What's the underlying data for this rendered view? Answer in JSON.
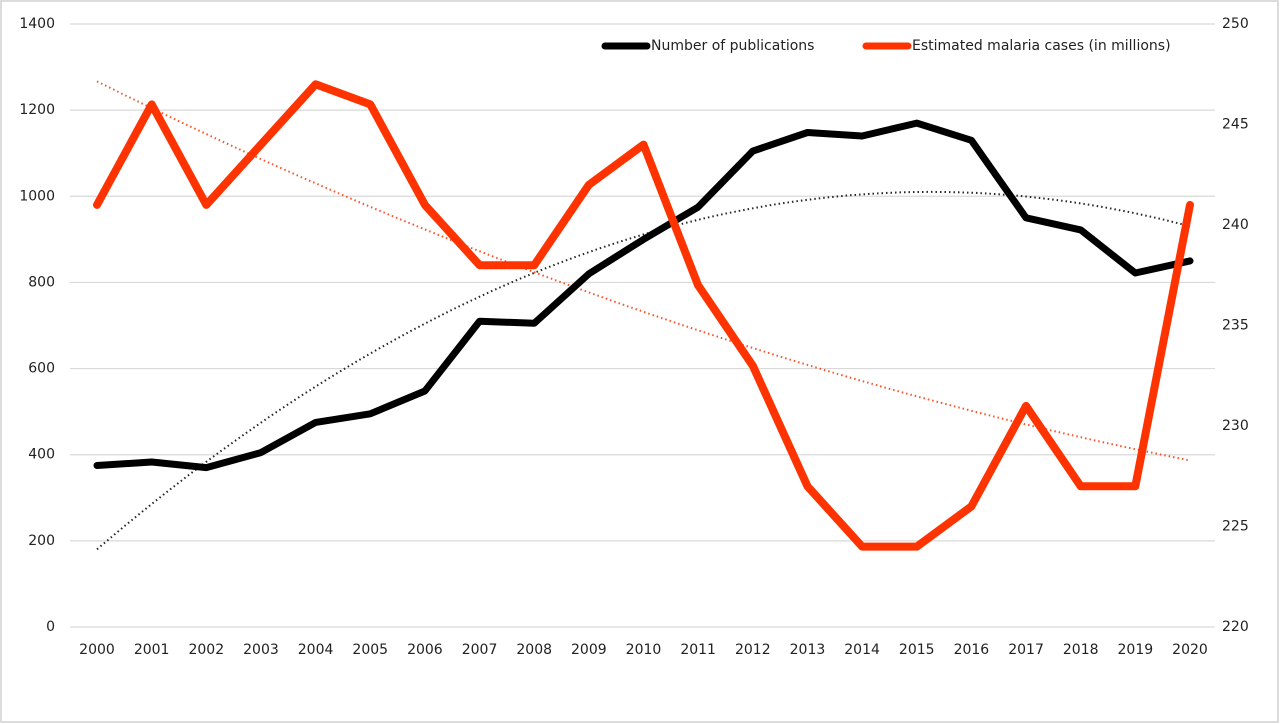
{
  "chart_data": {
    "type": "line",
    "categories": [
      "2000",
      "2001",
      "2002",
      "2003",
      "2004",
      "2005",
      "2006",
      "2007",
      "2008",
      "2009",
      "2010",
      "2011",
      "2012",
      "2013",
      "2014",
      "2015",
      "2016",
      "2017",
      "2018",
      "2019",
      "2020"
    ],
    "series": [
      {
        "name": "Number of publications",
        "color": "#000000",
        "axis": "y",
        "trendline": "polynomial",
        "values": [
          375,
          383,
          370,
          405,
          475,
          495,
          548,
          710,
          705,
          820,
          900,
          975,
          1105,
          1148,
          1140,
          1170,
          1130,
          950,
          922,
          822,
          850
        ]
      },
      {
        "name": "Estimated malaria cases (in millions)",
        "color": "#ff3300",
        "axis": "y2",
        "trendline": "polynomial",
        "values": [
          241,
          246,
          241,
          244,
          247,
          246,
          241,
          238,
          238,
          242,
          244,
          237,
          233,
          227,
          224,
          224,
          226,
          231,
          227,
          227,
          241
        ]
      }
    ],
    "ylim": [
      0,
      1400
    ],
    "yticks": [
      0,
      200,
      400,
      600,
      800,
      1000,
      1200,
      1400
    ],
    "y2lim": [
      220,
      250
    ],
    "y2ticks": [
      220,
      225,
      230,
      235,
      240,
      245,
      250
    ],
    "grid": true,
    "legend": "top-right"
  }
}
